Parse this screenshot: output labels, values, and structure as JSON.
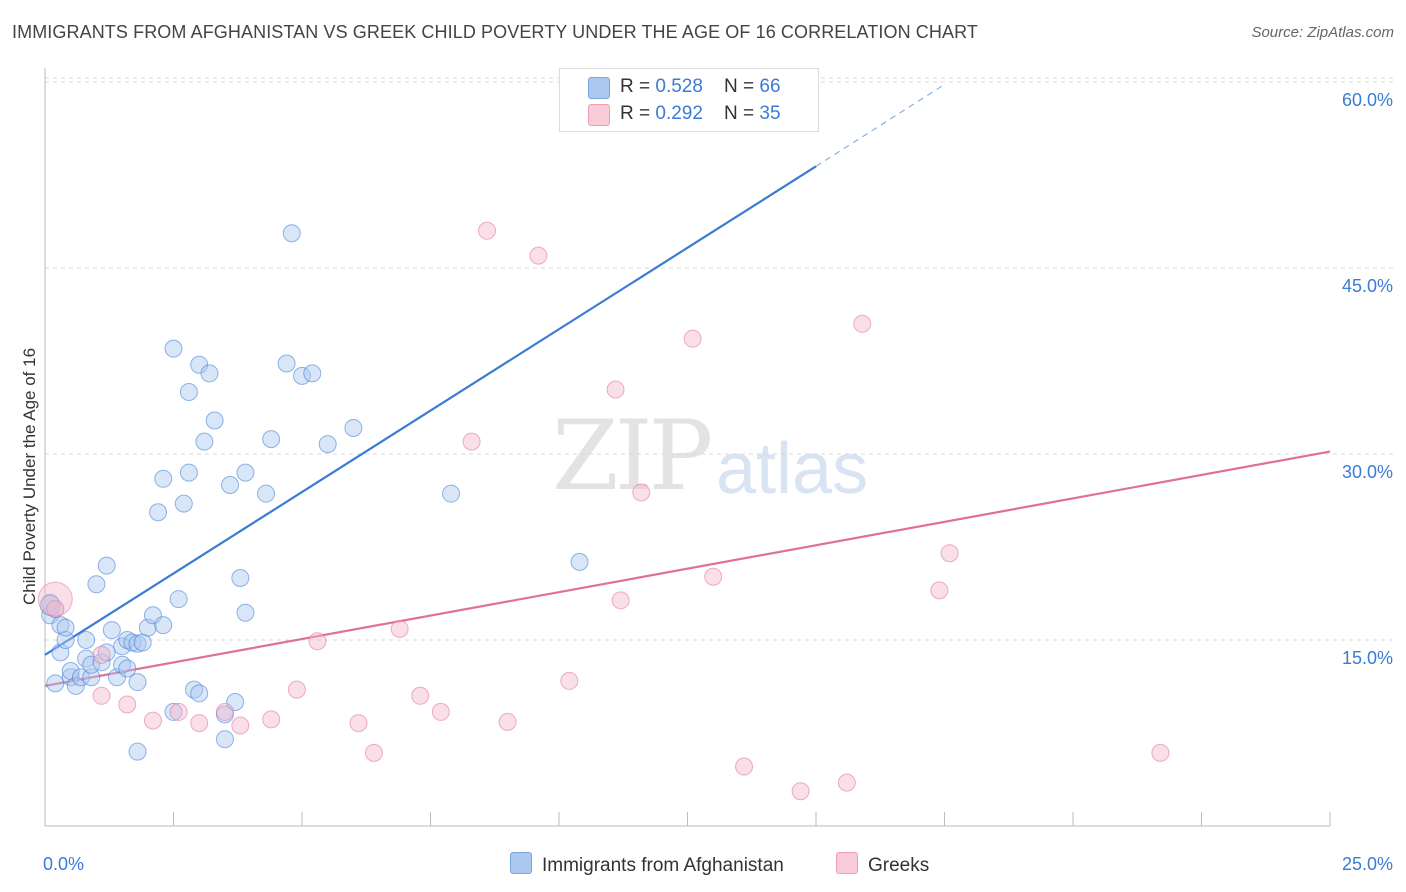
{
  "title": "IMMIGRANTS FROM AFGHANISTAN VS GREEK CHILD POVERTY UNDER THE AGE OF 16 CORRELATION CHART",
  "source": "Source: ZipAtlas.com",
  "watermark": {
    "zip": "ZIP",
    "atlas": "atlas"
  },
  "colors": {
    "blue": "#3a7bd5",
    "pink": "#e0709a",
    "blue_fill": "#aac8f0",
    "pink_fill": "#f5b8cb",
    "axis_text": "#3a7bd5"
  },
  "legend_top": {
    "rows": [
      {
        "r_label": "R = ",
        "r_value": "0.528",
        "n_label": "N = ",
        "n_value": "66"
      },
      {
        "r_label": "R = ",
        "r_value": "0.292",
        "n_label": "N = ",
        "n_value": "35"
      }
    ]
  },
  "legend_bottom": {
    "series1": "Immigrants from Afghanistan",
    "series2": "Greeks"
  },
  "chart_data": {
    "type": "scatter",
    "ylabel": "Child Poverty Under the Age of 16",
    "xlim": [
      0,
      25
    ],
    "ylim": [
      0,
      60
    ],
    "x_tick_labels": [
      "0.0%",
      "25.0%"
    ],
    "y_tick_labels": [
      "15.0%",
      "30.0%",
      "45.0%",
      "60.0%"
    ],
    "y_ticks": [
      15,
      30,
      45,
      60
    ],
    "series": [
      {
        "name": "Immigrants from Afghanistan",
        "color": "#3a7bd5",
        "trend": {
          "x0": 0,
          "y0": 13.8,
          "x1": 15,
          "y1": 53.2,
          "dash_to_x": 17.5,
          "dash_to_y": 59.8
        },
        "points": [
          [
            0.1,
            17.0
          ],
          [
            0.1,
            18.0
          ],
          [
            0.2,
            17.5
          ],
          [
            0.2,
            11.5
          ],
          [
            0.3,
            16.2
          ],
          [
            0.3,
            14.0
          ],
          [
            0.4,
            15.0
          ],
          [
            0.4,
            16.0
          ],
          [
            0.5,
            12.0
          ],
          [
            0.5,
            12.5
          ],
          [
            0.6,
            11.3
          ],
          [
            0.7,
            12.0
          ],
          [
            0.8,
            13.5
          ],
          [
            0.8,
            15.0
          ],
          [
            0.9,
            12.0
          ],
          [
            0.9,
            13.0
          ],
          [
            1.0,
            19.5
          ],
          [
            1.1,
            13.2
          ],
          [
            1.2,
            14.0
          ],
          [
            1.2,
            21.0
          ],
          [
            1.3,
            15.8
          ],
          [
            1.4,
            12.0
          ],
          [
            1.5,
            13.0
          ],
          [
            1.5,
            14.5
          ],
          [
            1.6,
            15.0
          ],
          [
            1.6,
            12.7
          ],
          [
            1.7,
            14.8
          ],
          [
            1.8,
            11.6
          ],
          [
            1.8,
            14.7
          ],
          [
            1.8,
            6.0
          ],
          [
            1.9,
            14.8
          ],
          [
            2.0,
            16.0
          ],
          [
            2.1,
            17.0
          ],
          [
            2.2,
            25.3
          ],
          [
            2.3,
            16.2
          ],
          [
            2.3,
            28.0
          ],
          [
            2.5,
            9.2
          ],
          [
            2.5,
            38.5
          ],
          [
            2.6,
            18.3
          ],
          [
            2.7,
            26.0
          ],
          [
            2.8,
            28.5
          ],
          [
            2.8,
            35.0
          ],
          [
            2.9,
            11.0
          ],
          [
            3.0,
            10.7
          ],
          [
            3.0,
            37.2
          ],
          [
            3.1,
            31.0
          ],
          [
            3.2,
            36.5
          ],
          [
            3.3,
            32.7
          ],
          [
            3.5,
            9.0
          ],
          [
            3.5,
            7.0
          ],
          [
            3.6,
            27.5
          ],
          [
            3.7,
            10.0
          ],
          [
            3.8,
            20.0
          ],
          [
            3.9,
            28.5
          ],
          [
            3.9,
            17.2
          ],
          [
            4.3,
            26.8
          ],
          [
            4.4,
            31.2
          ],
          [
            4.7,
            37.3
          ],
          [
            4.8,
            47.8
          ],
          [
            5.0,
            36.3
          ],
          [
            5.2,
            36.5
          ],
          [
            5.5,
            30.8
          ],
          [
            6.0,
            32.1
          ],
          [
            7.9,
            26.8
          ],
          [
            10.4,
            21.3
          ]
        ],
        "big_point": [
          0.1,
          17.8
        ]
      },
      {
        "name": "Greeks",
        "color": "#e0709a",
        "trend": {
          "x0": 0,
          "y0": 11.3,
          "x1": 25,
          "y1": 30.2
        },
        "points": [
          [
            0.2,
            17.5
          ],
          [
            1.1,
            13.8
          ],
          [
            1.1,
            10.5
          ],
          [
            1.6,
            9.8
          ],
          [
            2.1,
            8.5
          ],
          [
            2.6,
            9.2
          ],
          [
            3.0,
            8.3
          ],
          [
            3.5,
            9.2
          ],
          [
            3.8,
            8.1
          ],
          [
            4.4,
            8.6
          ],
          [
            4.9,
            11.0
          ],
          [
            5.3,
            14.9
          ],
          [
            6.1,
            8.3
          ],
          [
            6.4,
            5.9
          ],
          [
            6.9,
            15.9
          ],
          [
            7.3,
            10.5
          ],
          [
            7.7,
            9.2
          ],
          [
            8.3,
            31.0
          ],
          [
            8.6,
            48.0
          ],
          [
            9.0,
            8.4
          ],
          [
            9.6,
            46.0
          ],
          [
            10.2,
            11.7
          ],
          [
            11.1,
            35.2
          ],
          [
            11.2,
            18.2
          ],
          [
            11.6,
            26.9
          ],
          [
            12.6,
            39.3
          ],
          [
            13.0,
            20.1
          ],
          [
            13.6,
            4.8
          ],
          [
            14.7,
            2.8
          ],
          [
            15.6,
            3.5
          ],
          [
            15.9,
            40.5
          ],
          [
            17.4,
            19.0
          ],
          [
            17.6,
            22.0
          ],
          [
            21.7,
            5.9
          ]
        ],
        "big_point": [
          0.2,
          18.3
        ]
      }
    ]
  }
}
